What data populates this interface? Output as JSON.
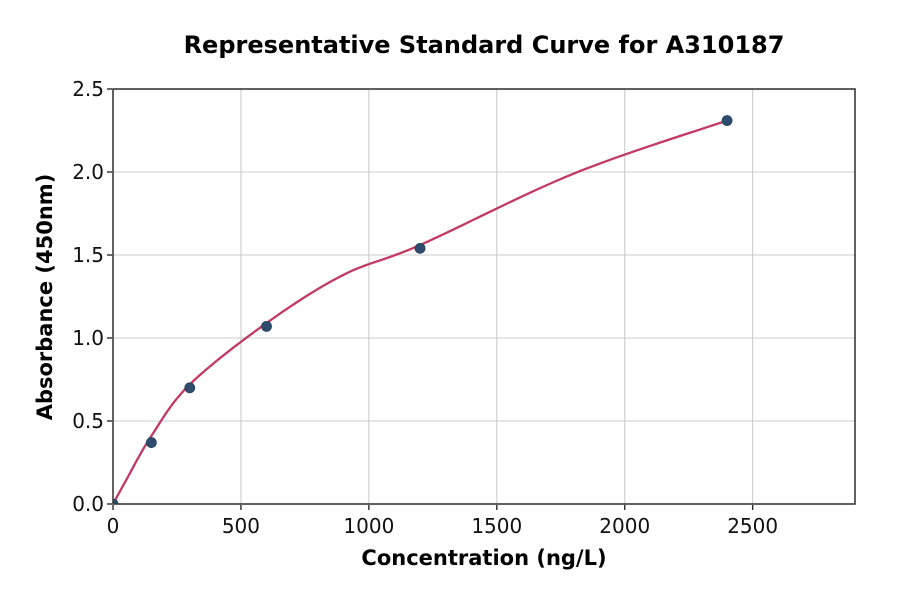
{
  "chart_data": {
    "type": "scatter",
    "title": "Representative Standard Curve for A310187",
    "xlabel": "Concentration (ng/L)",
    "ylabel": "Absorbance (450nm)",
    "x": [
      0,
      150,
      300,
      600,
      1200,
      2400
    ],
    "y": [
      0.0,
      0.37,
      0.7,
      1.07,
      1.54,
      2.31
    ],
    "fit_curve": {
      "type": "smooth-spline",
      "points": [
        [
          0,
          0
        ],
        [
          50,
          0.14
        ],
        [
          150,
          0.41
        ],
        [
          300,
          0.72
        ],
        [
          600,
          1.09
        ],
        [
          900,
          1.38
        ],
        [
          1200,
          1.56
        ],
        [
          1800,
          1.99
        ],
        [
          2400,
          2.31
        ]
      ]
    },
    "xlim": [
      0,
      2900
    ],
    "ylim": [
      0,
      2.5
    ],
    "xticks": [
      0,
      500,
      1000,
      1500,
      2000,
      2500
    ],
    "yticks": [
      0.0,
      0.5,
      1.0,
      1.5,
      2.0,
      2.5
    ],
    "ytick_decimals": 1,
    "grid": true,
    "legend": "none",
    "colors": {
      "curve": "#c23a64",
      "points": "#2e4c6d",
      "point_edge": "#24405e",
      "grid": "#cccccc",
      "spine": "#3a3a3a",
      "tick": "#2a2a2a",
      "text": "#111111",
      "background": "#ffffff"
    }
  }
}
